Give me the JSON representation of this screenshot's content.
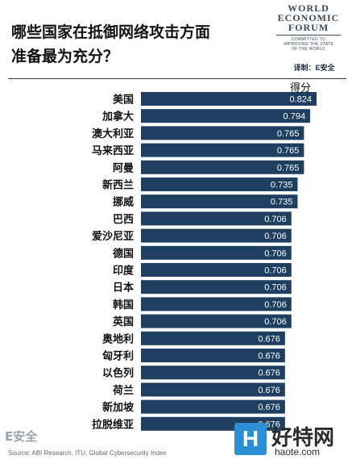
{
  "header": {
    "title_line1": "哪些国家在抵御网络攻击方面",
    "title_line2": "准备最为充分？",
    "logo_line1": "WORLD",
    "logo_line2": "ECONOMIC",
    "logo_line3": "FORUM",
    "logo_tagline1": "COMMITTED TO",
    "logo_tagline2": "IMPROVING THE STATE",
    "logo_tagline3": "OF THE WORLD",
    "translator": "译制：E安全"
  },
  "chart_data": {
    "type": "bar",
    "orientation": "horizontal",
    "value_header": "得分",
    "categories": [
      "美国",
      "加拿大",
      "澳大利亚",
      "马来西亚",
      "阿曼",
      "新西兰",
      "挪威",
      "巴西",
      "爱沙尼亚",
      "德国",
      "印度",
      "日本",
      "韩国",
      "英国",
      "奥地利",
      "匈牙利",
      "以色列",
      "荷兰",
      "新加坡",
      "拉脱维亚"
    ],
    "values": [
      0.824,
      0.794,
      0.765,
      0.765,
      0.765,
      0.735,
      0.735,
      0.706,
      0.706,
      0.706,
      0.706,
      0.706,
      0.706,
      0.706,
      0.676,
      0.676,
      0.676,
      0.676,
      0.676,
      0.676
    ],
    "value_labels": [
      "0.824",
      "0.794",
      "0.765",
      "0.765",
      "0.765",
      "0.735",
      "0.735",
      "0.706",
      "0.706",
      "0.706",
      "0.706",
      "0.706",
      "0.706",
      "0.706",
      "0.676",
      "0.676",
      "0.676",
      "0.676",
      "0.676",
      "0.676"
    ],
    "bar_color": "#1f3f60",
    "label_color": "#ffffff",
    "legend": "none",
    "grid": false
  },
  "footer": {
    "logo": "E安全",
    "source": "Source: ABI Research, ITU, Global Cybersecurity Index",
    "watermark_letter": "H",
    "watermark_cn": "好特网",
    "watermark_url": "haote.com"
  }
}
